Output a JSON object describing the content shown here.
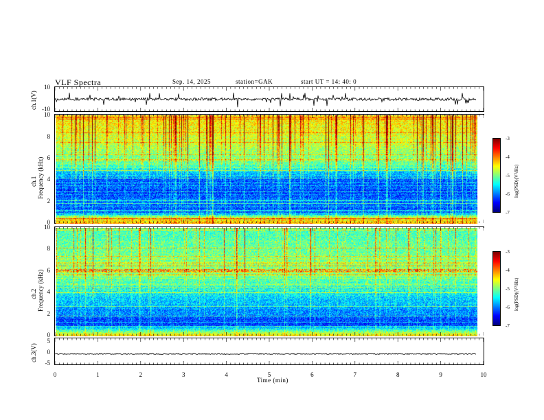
{
  "header": {
    "title": "VLF  Spectra",
    "date": "Sep. 14, 2025",
    "station": "station=GAK",
    "start": "start  UT  =   14: 40: 0"
  },
  "colors": {
    "colormap": [
      "#00007f",
      "#0000ff",
      "#007fff",
      "#00ffff",
      "#7fff7f",
      "#ffff00",
      "#ff7f00",
      "#ff0000",
      "#7f0000"
    ],
    "trace": "#000000"
  },
  "chart_data": [
    {
      "type": "line",
      "name": "ch1-waveform",
      "ylabel": "ch.1(V)",
      "ylim": [
        -10,
        10
      ],
      "yticks": [
        "10",
        "-10"
      ],
      "xlim": [
        0,
        10
      ],
      "baseline": 0,
      "note": "noisy broadband trace near 0 V with spikes"
    },
    {
      "type": "heatmap",
      "name": "ch1-spectrogram",
      "ylabel": "ch.1\nFrequency  (kHz)",
      "ylabel_line1": "ch.1",
      "ylabel_line2": "Frequency  (kHz)",
      "ylim": [
        0,
        10
      ],
      "yticks": [
        "0",
        "2",
        "4",
        "6",
        "8",
        "10"
      ],
      "xlim": [
        0,
        10
      ],
      "colorbar": {
        "label": "log(PSD)(V²/Hz)",
        "range": [
          -7,
          -3
        ],
        "ticks": [
          "-3",
          "-4",
          "-5",
          "-6",
          "-7"
        ]
      },
      "profile": [
        {
          "f": 0.0,
          "level": -4.2
        },
        {
          "f": 0.5,
          "level": -4.6
        },
        {
          "f": 1.0,
          "level": -6.2
        },
        {
          "f": 2.0,
          "level": -6.0
        },
        {
          "f": 3.0,
          "level": -6.3
        },
        {
          "f": 4.0,
          "level": -6.1
        },
        {
          "f": 4.8,
          "level": -5.6
        },
        {
          "f": 5.5,
          "level": -5.1
        },
        {
          "f": 6.5,
          "level": -4.9
        },
        {
          "f": 8.0,
          "level": -4.6
        },
        {
          "f": 10.0,
          "level": -4.4
        }
      ]
    },
    {
      "type": "heatmap",
      "name": "ch2-spectrogram",
      "ylabel_line1": "ch.2",
      "ylabel_line2": "Frequency  (kHz)",
      "ylim": [
        0,
        10
      ],
      "yticks": [
        "0",
        "2",
        "4",
        "6",
        "8",
        "10"
      ],
      "xlim": [
        0,
        10
      ],
      "colorbar": {
        "label": "log(PSD)(V²/Hz)",
        "range": [
          -7,
          -3
        ],
        "ticks": [
          "-3",
          "-4",
          "-5",
          "-6",
          "-7"
        ]
      },
      "profile": [
        {
          "f": 0.0,
          "level": -4.4
        },
        {
          "f": 0.5,
          "level": -5.2
        },
        {
          "f": 1.0,
          "level": -6.3
        },
        {
          "f": 2.0,
          "level": -6.0
        },
        {
          "f": 3.0,
          "level": -5.7
        },
        {
          "f": 4.0,
          "level": -5.5
        },
        {
          "f": 5.0,
          "level": -5.2
        },
        {
          "f": 6.0,
          "level": -4.9
        },
        {
          "f": 7.0,
          "level": -5.0
        },
        {
          "f": 8.5,
          "level": -5.1
        },
        {
          "f": 10.0,
          "level": -5.2
        }
      ]
    },
    {
      "type": "line",
      "name": "ch3-waveform",
      "ylabel": "ch.3(V)",
      "ylim": [
        -5,
        5
      ],
      "yticks": [
        "5",
        "0",
        "-5"
      ],
      "xlim": [
        0,
        10
      ],
      "baseline": 0,
      "note": "flat trace slightly below 0 V"
    }
  ],
  "xaxis": {
    "label": "Time  (min)",
    "ticks": [
      "0",
      "1",
      "2",
      "3",
      "4",
      "5",
      "6",
      "7",
      "8",
      "9",
      "10"
    ],
    "range": [
      0,
      10
    ],
    "data_end": 9.83
  }
}
